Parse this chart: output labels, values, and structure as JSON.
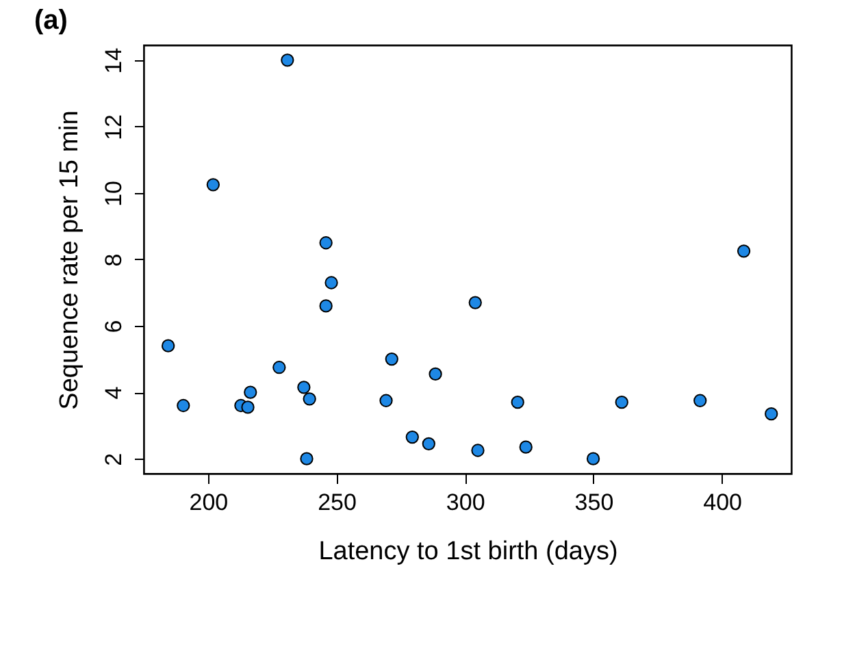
{
  "chart_data": {
    "type": "scatter",
    "title": "(a)",
    "xlabel": "Latency to 1st birth (days)",
    "ylabel": "Sequence rate per 15 min",
    "x": [
      184.5,
      190.4,
      202,
      212.8,
      215.5,
      216.5,
      227.7,
      230.9,
      237.3,
      239.5,
      238.4,
      245.9,
      248,
      245.9,
      269.3,
      271.5,
      279.5,
      285.9,
      288.5,
      304,
      305,
      320.5,
      323.7,
      349.9,
      361,
      391.5,
      408.5,
      419.2
    ],
    "series": [
      {
        "color": "#1e88e5",
        "values": [
          5.4,
          3.6,
          10.25,
          3.6,
          3.55,
          4.0,
          4.75,
          14.0,
          4.15,
          3.8,
          2.0,
          8.5,
          7.3,
          6.6,
          3.75,
          5.0,
          2.65,
          2.45,
          4.55,
          6.7,
          2.25,
          3.7,
          2.35,
          2.0,
          3.7,
          3.75,
          8.25,
          3.35
        ]
      }
    ],
    "xlim": [
      175,
      427
    ],
    "ylim": [
      1.55,
      14.45
    ],
    "xticks": [
      200,
      250,
      300,
      350,
      400
    ],
    "yticks": [
      2,
      4,
      6,
      8,
      10,
      12,
      14
    ],
    "marker": "circle",
    "grid": false
  }
}
